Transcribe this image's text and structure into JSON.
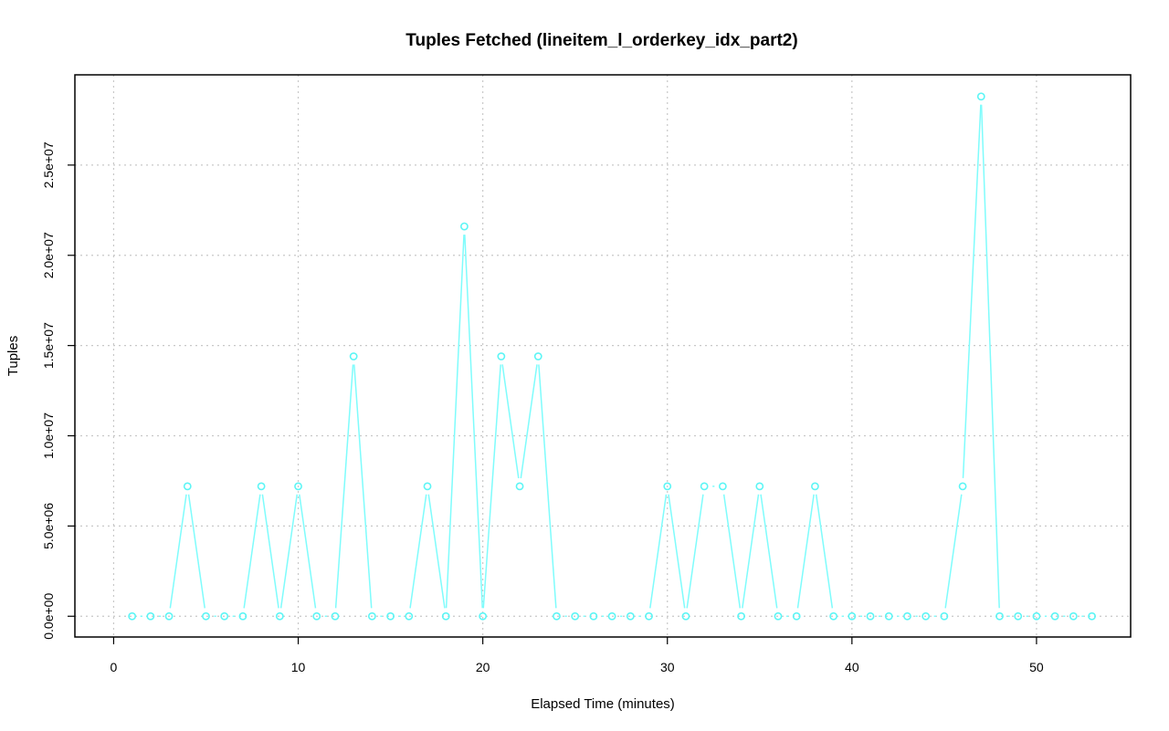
{
  "chart_data": {
    "type": "line",
    "title": "Tuples Fetched (lineitem_l_orderkey_idx_part2)",
    "xlabel": "Elapsed Time (minutes)",
    "ylabel": "Tuples",
    "xlim": [
      -2.1,
      55.1
    ],
    "ylim": [
      -1150000,
      30000000
    ],
    "xticks": [
      0,
      10,
      20,
      30,
      40,
      50
    ],
    "xtick_labels": [
      "0",
      "10",
      "20",
      "30",
      "40",
      "50"
    ],
    "yticks": [
      0,
      5000000,
      10000000,
      15000000,
      20000000,
      25000000
    ],
    "ytick_labels": [
      "0.0e+00",
      "5.0e+06",
      "1.0e+07",
      "1.5e+07",
      "2.0e+07",
      "2.5e+07"
    ],
    "grid": true,
    "color": "#7ffcfc",
    "series": [
      {
        "x": [
          1,
          2,
          3,
          4,
          5,
          6,
          7,
          8,
          9,
          10,
          11,
          12,
          13,
          14,
          15,
          16,
          17,
          18,
          19,
          20,
          21,
          22,
          23,
          24,
          25,
          26,
          27,
          28,
          29,
          30,
          31,
          32,
          33,
          34,
          35,
          36,
          37,
          38,
          39,
          40,
          41,
          42,
          43,
          44,
          45,
          46,
          47,
          48,
          49,
          50,
          51,
          52,
          53
        ],
        "values": [
          0,
          0,
          0,
          7200000,
          0,
          0,
          0,
          7200000,
          0,
          7200000,
          0,
          0,
          14400000,
          0,
          0,
          0,
          7200000,
          0,
          21600000,
          0,
          14400000,
          7200000,
          14400000,
          0,
          0,
          0,
          0,
          0,
          0,
          7200000,
          0,
          7200000,
          7200000,
          0,
          7200000,
          0,
          0,
          7200000,
          0,
          0,
          0,
          0,
          0,
          0,
          0,
          7200000,
          28800000,
          0,
          0,
          0,
          0,
          0,
          0
        ]
      }
    ]
  }
}
